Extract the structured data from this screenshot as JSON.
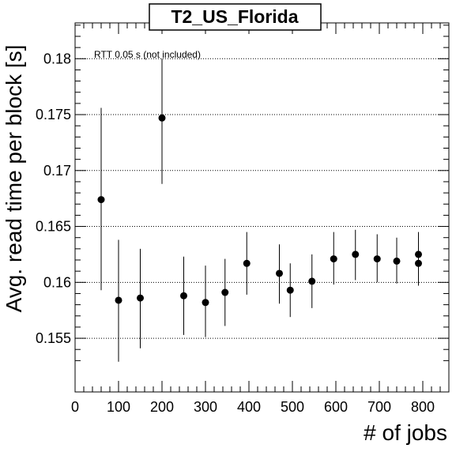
{
  "chart_data": {
    "type": "scatter",
    "title": "T2_US_Florida",
    "xlabel": "# of jobs",
    "ylabel": "Avg. read time per block [s]",
    "annotation": "RTT 0.05 s (not included)",
    "xlim": [
      0,
      860
    ],
    "ylim": [
      0.1502,
      0.1832
    ],
    "x_ticks": [
      0,
      100,
      200,
      300,
      400,
      500,
      600,
      700,
      800
    ],
    "y_ticks": [
      0.155,
      0.16,
      0.165,
      0.17,
      0.175,
      0.18
    ],
    "y_tick_labels": [
      "0.155",
      "0.16",
      "0.165",
      "0.17",
      "0.175",
      "0.18"
    ],
    "grid": "horizontal dotted",
    "points": [
      {
        "x": 60,
        "y": 0.1674,
        "err_low": 0.1593,
        "err_high": 0.1756
      },
      {
        "x": 100,
        "y": 0.1584,
        "err_low": 0.1529,
        "err_high": 0.1638
      },
      {
        "x": 150,
        "y": 0.1586,
        "err_low": 0.1541,
        "err_high": 0.163
      },
      {
        "x": 200,
        "y": 0.1747,
        "err_low": 0.1688,
        "err_high": 0.18
      },
      {
        "x": 250,
        "y": 0.1588,
        "err_low": 0.1553,
        "err_high": 0.1623
      },
      {
        "x": 300,
        "y": 0.1582,
        "err_low": 0.1551,
        "err_high": 0.1615
      },
      {
        "x": 345,
        "y": 0.1591,
        "err_low": 0.1561,
        "err_high": 0.1621
      },
      {
        "x": 395,
        "y": 0.1617,
        "err_low": 0.1589,
        "err_high": 0.1645
      },
      {
        "x": 470,
        "y": 0.1608,
        "err_low": 0.1581,
        "err_high": 0.1634
      },
      {
        "x": 495,
        "y": 0.1593,
        "err_low": 0.1569,
        "err_high": 0.1617
      },
      {
        "x": 545,
        "y": 0.1601,
        "err_low": 0.1577,
        "err_high": 0.1625
      },
      {
        "x": 595,
        "y": 0.1621,
        "err_low": 0.1598,
        "err_high": 0.1645
      },
      {
        "x": 645,
        "y": 0.1625,
        "err_low": 0.1602,
        "err_high": 0.1647
      },
      {
        "x": 695,
        "y": 0.1621,
        "err_low": 0.16,
        "err_high": 0.1643
      },
      {
        "x": 740,
        "y": 0.1619,
        "err_low": 0.1599,
        "err_high": 0.164
      },
      {
        "x": 790,
        "y": 0.1625,
        "err_low": 0.1605,
        "err_high": 0.1645
      },
      {
        "x": 790,
        "y": 0.1617,
        "err_low": 0.1597,
        "err_high": 0.1638
      }
    ]
  }
}
